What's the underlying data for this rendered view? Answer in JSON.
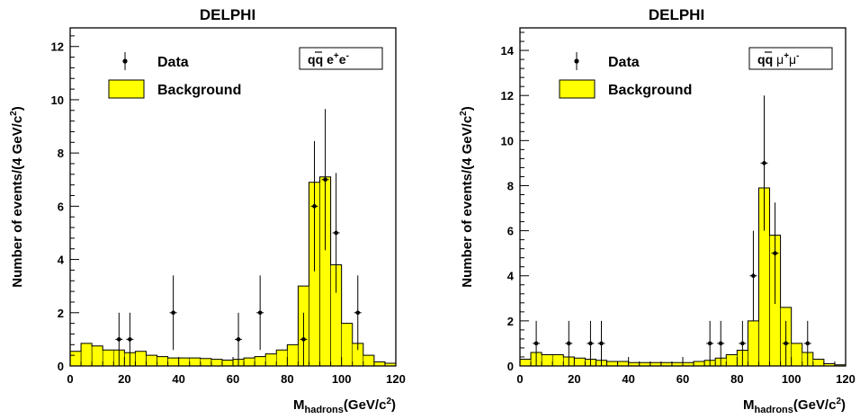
{
  "colors": {
    "background_fill": "#ffff00",
    "background_line": "#000000",
    "data": "#000000"
  },
  "legend_labels": {
    "data": "Data",
    "background": "Background"
  },
  "axis_label": {
    "y_main": "Number of events/(4 GeV/c",
    "y_exp": "2",
    "y_close": ")",
    "x_main": "M",
    "x_sub": "hadrons",
    "x_unit": "(GeV/c",
    "x_exp": "2",
    "x_close": ")"
  },
  "chart_data": [
    {
      "type": "histogram",
      "title": "DELPHI",
      "channel": {
        "q": "q",
        "qbar": "q",
        "l1": "e",
        "l2": "e",
        "sup1": "+",
        "sup2": "-"
      },
      "xlim": [
        0,
        120
      ],
      "ylim": [
        0,
        12.7
      ],
      "xticks": [
        0,
        20,
        40,
        60,
        80,
        100,
        120
      ],
      "yticks": [
        0,
        2,
        4,
        6,
        8,
        10,
        12
      ],
      "bin_width": 4,
      "background": [
        0.55,
        0.85,
        0.75,
        0.6,
        0.6,
        0.5,
        0.55,
        0.4,
        0.35,
        0.3,
        0.3,
        0.3,
        0.28,
        0.25,
        0.22,
        0.25,
        0.3,
        0.35,
        0.45,
        0.6,
        0.8,
        3.0,
        6.9,
        7.1,
        3.8,
        1.6,
        0.85,
        0.4,
        0.15,
        0.1
      ],
      "data_points": [
        {
          "x": 18,
          "y": 1,
          "err_lo": 1,
          "err_hi": 1
        },
        {
          "x": 22,
          "y": 1,
          "err_lo": 1,
          "err_hi": 1
        },
        {
          "x": 38,
          "y": 2,
          "err_lo": 1.4,
          "err_hi": 1.4
        },
        {
          "x": 62,
          "y": 1,
          "err_lo": 1,
          "err_hi": 1
        },
        {
          "x": 70,
          "y": 2,
          "err_lo": 1.4,
          "err_hi": 1.4
        },
        {
          "x": 86,
          "y": 1,
          "err_lo": 1,
          "err_hi": 1
        },
        {
          "x": 90,
          "y": 6,
          "err_lo": 2.45,
          "err_hi": 2.45
        },
        {
          "x": 94,
          "y": 7,
          "err_lo": 2.65,
          "err_hi": 2.65
        },
        {
          "x": 98,
          "y": 5,
          "err_lo": 2.25,
          "err_hi": 2.25
        },
        {
          "x": 106,
          "y": 2,
          "err_lo": 1.4,
          "err_hi": 1.4
        }
      ]
    },
    {
      "type": "histogram",
      "title": "DELPHI",
      "channel": {
        "q": "q",
        "qbar": "q",
        "l1": "μ",
        "l2": "μ",
        "sup1": "+",
        "sup2": "-"
      },
      "xlim": [
        0,
        120
      ],
      "ylim": [
        0,
        15
      ],
      "xticks": [
        0,
        20,
        40,
        60,
        80,
        100,
        120
      ],
      "yticks": [
        0,
        2,
        4,
        6,
        8,
        10,
        12,
        14
      ],
      "bin_width": 4,
      "background": [
        0.3,
        0.6,
        0.5,
        0.5,
        0.4,
        0.35,
        0.3,
        0.25,
        0.2,
        0.2,
        0.15,
        0.15,
        0.15,
        0.15,
        0.15,
        0.15,
        0.2,
        0.25,
        0.35,
        0.5,
        0.7,
        2.0,
        7.9,
        5.8,
        2.6,
        1.0,
        0.6,
        0.3,
        0.1,
        0.05
      ],
      "data_points": [
        {
          "x": 6,
          "y": 1,
          "err_lo": 1,
          "err_hi": 1
        },
        {
          "x": 18,
          "y": 1,
          "err_lo": 1,
          "err_hi": 1
        },
        {
          "x": 26,
          "y": 1,
          "err_lo": 1,
          "err_hi": 1
        },
        {
          "x": 30,
          "y": 1,
          "err_lo": 1,
          "err_hi": 1
        },
        {
          "x": 70,
          "y": 1,
          "err_lo": 1,
          "err_hi": 1
        },
        {
          "x": 74,
          "y": 1,
          "err_lo": 1,
          "err_hi": 1
        },
        {
          "x": 82,
          "y": 1,
          "err_lo": 1,
          "err_hi": 1
        },
        {
          "x": 86,
          "y": 4,
          "err_lo": 2,
          "err_hi": 2
        },
        {
          "x": 90,
          "y": 9,
          "err_lo": 3,
          "err_hi": 3
        },
        {
          "x": 94,
          "y": 5,
          "err_lo": 2.25,
          "err_hi": 2.25
        },
        {
          "x": 98,
          "y": 1,
          "err_lo": 1,
          "err_hi": 1
        },
        {
          "x": 106,
          "y": 1,
          "err_lo": 1,
          "err_hi": 1
        }
      ]
    }
  ]
}
